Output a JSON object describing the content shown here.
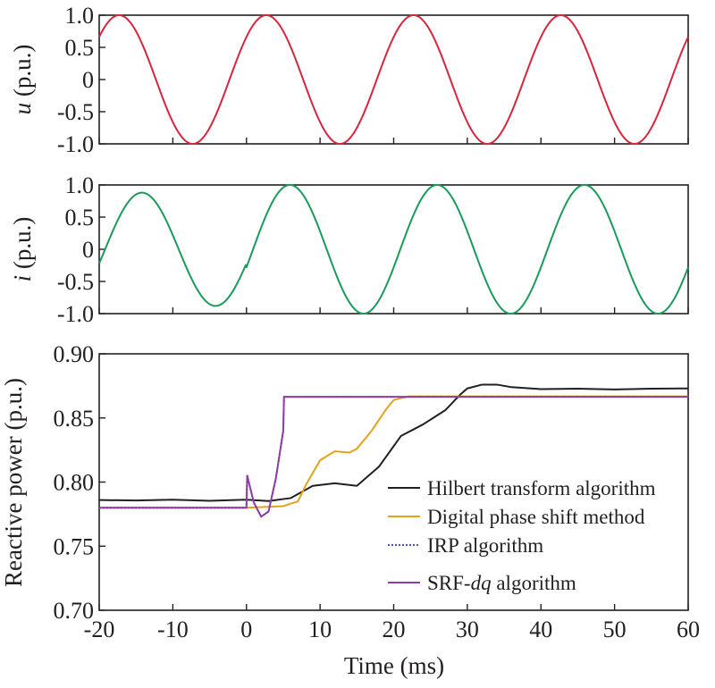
{
  "chart_data": [
    {
      "type": "line",
      "panel": "voltage",
      "ylabel_var": "u",
      "ylabel_unit": " (p.u.)",
      "xlim": [
        -20,
        60
      ],
      "ylim": [
        -1.0,
        1.0
      ],
      "yticks": [
        "1.0",
        "0.5",
        "0",
        "-0.5",
        "-1.0"
      ],
      "ytick_values": [
        1.0,
        0.5,
        0,
        -0.5,
        -1.0
      ],
      "series": [
        {
          "color": "#d7263d",
          "description": "sinusoid amplitude 1.0, period 20 ms, peaks at -17.3, 2.7, 22.7, 42.7 ms",
          "x": [
            -20,
            -17.3,
            -12.3,
            -7.3,
            -2.3,
            2.7,
            7.7,
            12.7,
            17.7,
            22.7,
            27.7,
            32.7,
            37.7,
            42.7,
            47.7,
            52.7,
            57.7,
            60
          ],
          "y": [
            0.66,
            1.0,
            0,
            -1.0,
            0,
            1.0,
            0,
            -1.0,
            0,
            1.0,
            0,
            -1.0,
            0,
            1.0,
            0,
            -1.0,
            0,
            0.6
          ]
        }
      ]
    },
    {
      "type": "line",
      "panel": "current",
      "ylabel_var": "i",
      "ylabel_unit": " (p.u.)",
      "xlim": [
        -20,
        60
      ],
      "ylim": [
        -1.0,
        1.0
      ],
      "yticks": [
        "1.0",
        "0.5",
        "0",
        "-0.5",
        "-1.0"
      ],
      "ytick_values": [
        1.0,
        0.5,
        0,
        -0.5,
        -1.0
      ],
      "series": [
        {
          "color": "#1a9b5b",
          "description": "amplitude 0.88 before t=0, 1.0 after; period 20 ms; peaks at -14.2, 5.9, 25.9, 45.9 ms",
          "x": [
            -20,
            -14.2,
            -9.2,
            -4.2,
            0,
            5.9,
            10.9,
            15.9,
            20.9,
            25.9,
            30.9,
            35.9,
            40.9,
            45.9,
            50.9,
            55.9,
            60
          ],
          "y": [
            -0.3,
            0.88,
            0,
            -0.88,
            -0.3,
            1.0,
            0,
            -1.0,
            0,
            1.0,
            0,
            -1.0,
            0,
            1.0,
            0,
            -1.0,
            -0.4
          ]
        }
      ]
    },
    {
      "type": "line",
      "panel": "reactive-power",
      "ylabel": "Reactive power (p.u.)",
      "xlabel": "Time (ms)",
      "xlim": [
        -20,
        60
      ],
      "ylim": [
        0.7,
        0.9
      ],
      "xticks": [
        "-20",
        "-10",
        "0",
        "10",
        "20",
        "30",
        "40",
        "50",
        "60"
      ],
      "xtick_values": [
        -20,
        -10,
        0,
        10,
        20,
        30,
        40,
        50,
        60
      ],
      "yticks": [
        "0.90",
        "0.85",
        "0.80",
        "0.75",
        "0.70"
      ],
      "ytick_values": [
        0.9,
        0.85,
        0.8,
        0.75,
        0.7
      ],
      "legend_position": "lower-right",
      "series": [
        {
          "name": "Hilbert transform algorithm",
          "color": "#231f20",
          "x": [
            -20,
            -15,
            -10,
            -5,
            0,
            3,
            6,
            9,
            12,
            15,
            18,
            21,
            24,
            27,
            29,
            30,
            32,
            34,
            36,
            40,
            45,
            50,
            55,
            60
          ],
          "y": [
            0.786,
            0.7856,
            0.7862,
            0.7854,
            0.7862,
            0.7852,
            0.7875,
            0.797,
            0.799,
            0.797,
            0.812,
            0.836,
            0.845,
            0.856,
            0.868,
            0.873,
            0.876,
            0.876,
            0.874,
            0.8725,
            0.8728,
            0.8722,
            0.8728,
            0.873
          ]
        },
        {
          "name": "Digital phase shift method",
          "color": "#e3a21a",
          "x": [
            -20,
            0,
            5,
            7,
            8,
            10,
            12,
            14,
            15,
            17,
            19,
            20,
            22,
            30,
            40,
            50,
            60
          ],
          "y": [
            0.78,
            0.78,
            0.7812,
            0.785,
            0.797,
            0.817,
            0.824,
            0.823,
            0.826,
            0.84,
            0.857,
            0.864,
            0.8668,
            0.8668,
            0.8668,
            0.8668,
            0.8668
          ]
        },
        {
          "name": "IRP algorithm",
          "color": "#3b5db8",
          "dashed": true,
          "x": [
            -20,
            0,
            0.1,
            1,
            2,
            3,
            4,
            5,
            5.1,
            20,
            40,
            60
          ],
          "y": [
            0.78,
            0.78,
            0.805,
            0.784,
            0.773,
            0.777,
            0.803,
            0.84,
            0.8665,
            0.8665,
            0.8665,
            0.8665
          ]
        },
        {
          "name": "SRF-dq algorithm",
          "name_prefix": "SRF-",
          "name_italic": "dq",
          "name_suffix": " algorithm",
          "color": "#8e3fa6",
          "x": [
            -20,
            0,
            0.1,
            1,
            2,
            3,
            4,
            5,
            5.1,
            20,
            40,
            60
          ],
          "y": [
            0.78,
            0.78,
            0.805,
            0.784,
            0.773,
            0.777,
            0.803,
            0.84,
            0.8665,
            0.8665,
            0.8665,
            0.8665
          ]
        }
      ]
    }
  ]
}
